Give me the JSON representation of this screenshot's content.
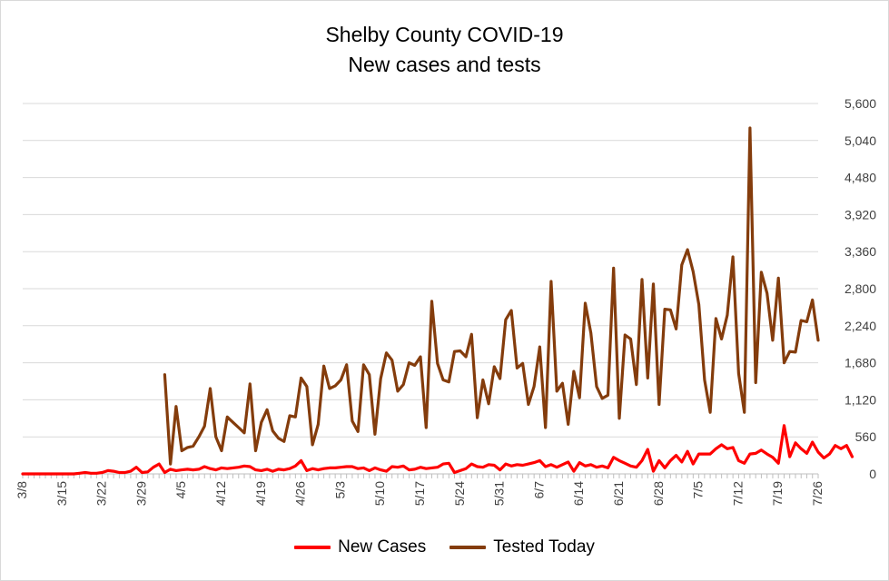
{
  "chart_data": {
    "type": "line",
    "title": "Shelby County COVID-19",
    "subtitle": "New cases and tests",
    "xlabel": "",
    "ylabel": "",
    "y_axis_side": "right",
    "ylim": [
      0,
      5600
    ],
    "yticks": [
      "5,600",
      "5,040",
      "4,480",
      "3,920",
      "3,360",
      "2,800",
      "2,240",
      "1,680",
      "1,120",
      "560",
      "0"
    ],
    "ytick_values": [
      5600,
      5040,
      4480,
      3920,
      3360,
      2800,
      2240,
      1680,
      1120,
      560,
      0
    ],
    "x_start": "3/8",
    "x_end": "7/26",
    "x_tick_labels": [
      "3/8",
      "3/15",
      "3/22",
      "3/29",
      "4/5",
      "4/12",
      "4/19",
      "4/26",
      "5/3",
      "5/10",
      "5/17",
      "5/24",
      "5/31",
      "6/7",
      "6/14",
      "6/21",
      "6/28",
      "7/5",
      "7/12",
      "7/19",
      "7/26"
    ],
    "grid": true,
    "legend_position": "bottom",
    "series": [
      {
        "name": "New Cases",
        "color": "#ff0000",
        "x_start": "3/8",
        "values": [
          0,
          0,
          0,
          0,
          0,
          0,
          0,
          0,
          0,
          0,
          10,
          20,
          10,
          10,
          20,
          50,
          40,
          20,
          20,
          40,
          100,
          20,
          30,
          100,
          150,
          20,
          70,
          50,
          60,
          70,
          60,
          70,
          110,
          80,
          60,
          90,
          80,
          90,
          100,
          120,
          110,
          60,
          50,
          70,
          40,
          70,
          60,
          80,
          120,
          200,
          50,
          80,
          60,
          80,
          90,
          90,
          100,
          110,
          110,
          80,
          90,
          50,
          90,
          60,
          40,
          110,
          100,
          120,
          60,
          70,
          100,
          80,
          90,
          100,
          150,
          160,
          20,
          50,
          80,
          150,
          110,
          100,
          140,
          130,
          60,
          150,
          120,
          140,
          130,
          150,
          170,
          200,
          110,
          140,
          100,
          140,
          180,
          40,
          170,
          120,
          140,
          100,
          120,
          90,
          250,
          200,
          160,
          120,
          100,
          200,
          370,
          40,
          200,
          90,
          200,
          280,
          180,
          340,
          150,
          300,
          300,
          300,
          380,
          440,
          380,
          400,
          200,
          160,
          300,
          310,
          360,
          300,
          250,
          160,
          730,
          260,
          470,
          380,
          310,
          480,
          330,
          240,
          300,
          430,
          380,
          430,
          260
        ]
      },
      {
        "name": "Tested Today",
        "color": "#843c0c",
        "x_start": "4/2",
        "values": [
          1500,
          150,
          1020,
          350,
          400,
          420,
          560,
          720,
          1290,
          560,
          350,
          860,
          780,
          700,
          620,
          1360,
          350,
          780,
          970,
          650,
          540,
          490,
          880,
          860,
          1450,
          1320,
          440,
          750,
          1630,
          1290,
          1330,
          1420,
          1650,
          800,
          640,
          1650,
          1500,
          600,
          1440,
          1830,
          1720,
          1250,
          1350,
          1680,
          1640,
          1770,
          700,
          2610,
          1670,
          1420,
          1390,
          1850,
          1860,
          1770,
          2110,
          850,
          1420,
          1060,
          1620,
          1440,
          2330,
          2470,
          1600,
          1670,
          1050,
          1320,
          1920,
          700,
          2910,
          1250,
          1370,
          750,
          1550,
          1150,
          2580,
          2130,
          1320,
          1140,
          1190,
          3110,
          840,
          2100,
          2040,
          1350,
          2940,
          1450,
          2870,
          1050,
          2490,
          2480,
          2190,
          3160,
          3390,
          3060,
          2560,
          1420,
          930,
          2350,
          2040,
          2400,
          3280,
          1520,
          930,
          5230,
          1380,
          3050,
          2730,
          2020,
          2960,
          1680,
          1850,
          1840,
          2320,
          2300,
          2630,
          2020
        ]
      }
    ]
  }
}
